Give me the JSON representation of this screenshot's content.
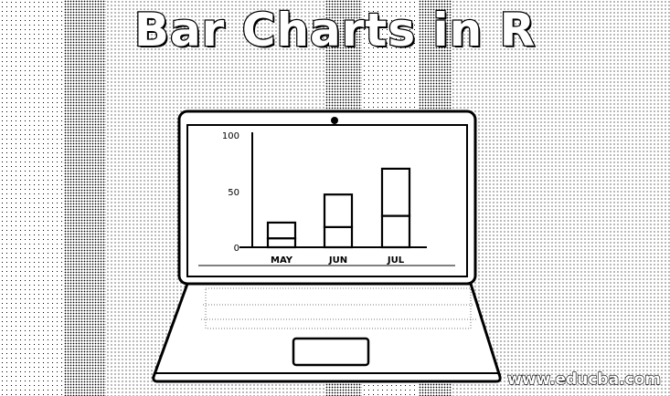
{
  "title": "Bar Charts in R",
  "watermark": "www.educba.com",
  "chart_data": {
    "type": "bar",
    "stacked": true,
    "categories": [
      "MAY",
      "JUN",
      "JUL"
    ],
    "series": [
      {
        "values": [
          8,
          18,
          28
        ]
      },
      {
        "values": [
          14,
          29,
          42
        ]
      }
    ],
    "yticks": [
      "100",
      "50",
      "0"
    ],
    "ylim": [
      0,
      100
    ]
  }
}
